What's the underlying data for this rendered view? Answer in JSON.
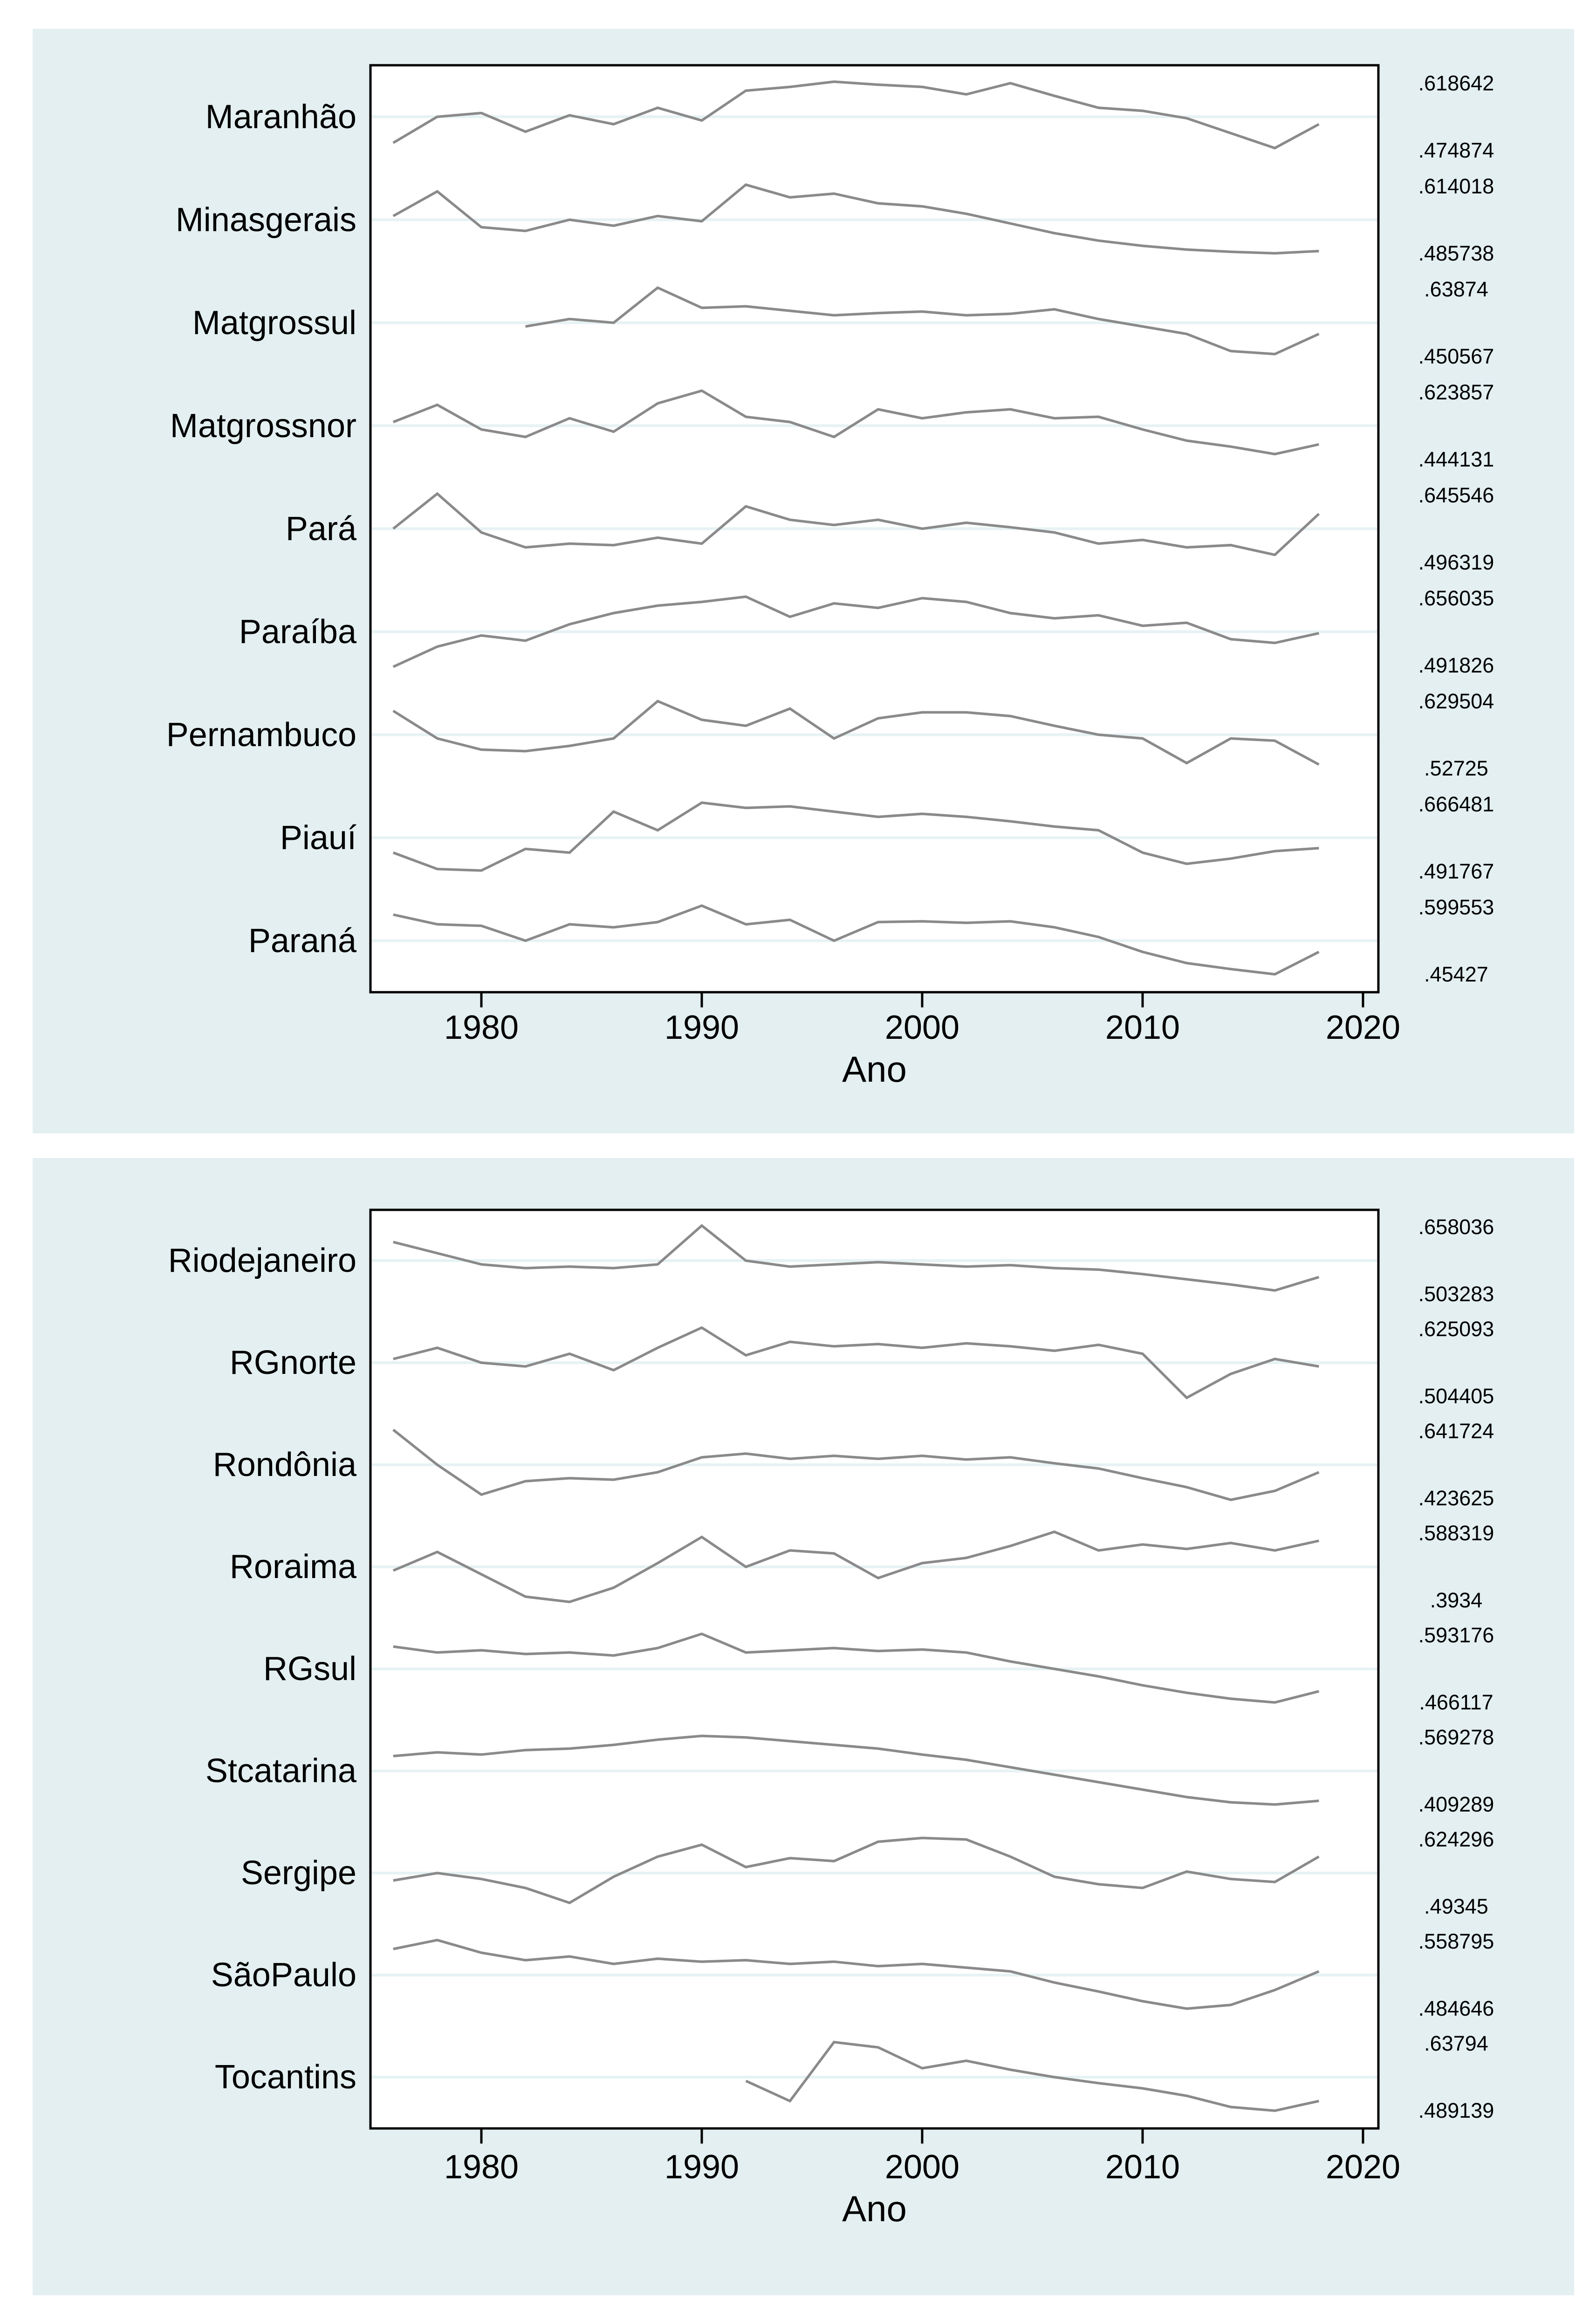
{
  "chart_data": {
    "type": "line",
    "xlabel": "Ano",
    "x_ticks": [
      1980,
      1990,
      2000,
      2010,
      2020
    ],
    "x_range": [
      1976,
      2018
    ],
    "grid": "horizontal-per-series",
    "legend_position": "none",
    "style": {
      "figure_background": "#e3eff1",
      "plot_background": "#ffffff",
      "grid_color": "#e6f2f3",
      "line_color": "#8a8a8a",
      "axis_color": "#000000"
    },
    "panels": [
      {
        "series": [
          {
            "name": "Maranhão",
            "max": ".618642",
            "min": ".474874",
            "start_year": 1976,
            "step": 2,
            "values": [
              0.15,
              0.5,
              0.55,
              0.3,
              0.52,
              0.4,
              0.62,
              0.45,
              0.85,
              0.9,
              0.97,
              0.93,
              0.9,
              0.8,
              0.95,
              0.78,
              0.62,
              0.58,
              0.48,
              0.28,
              0.08,
              0.4
            ]
          },
          {
            "name": "Minasgerais",
            "max": ".614018",
            "min": ".485738",
            "start_year": 1976,
            "step": 2,
            "values": [
              0.55,
              0.88,
              0.4,
              0.35,
              0.5,
              0.42,
              0.55,
              0.48,
              0.97,
              0.8,
              0.85,
              0.72,
              0.68,
              0.58,
              0.45,
              0.32,
              0.22,
              0.15,
              0.1,
              0.07,
              0.05,
              0.08
            ]
          },
          {
            "name": "Matgrossul",
            "max": ".63874",
            "min": ".450567",
            "start_year": 1982,
            "step": 2,
            "values": [
              0.45,
              0.55,
              0.5,
              0.97,
              0.7,
              0.72,
              0.66,
              0.6,
              0.63,
              0.65,
              0.6,
              0.62,
              0.68,
              0.55,
              0.45,
              0.35,
              0.12,
              0.08,
              0.35
            ]
          },
          {
            "name": "Matgrossnor",
            "max": ".623857",
            "min": ".444131",
            "start_year": 1976,
            "step": 2,
            "values": [
              0.55,
              0.78,
              0.45,
              0.35,
              0.6,
              0.42,
              0.8,
              0.97,
              0.62,
              0.55,
              0.35,
              0.72,
              0.6,
              0.68,
              0.72,
              0.6,
              0.62,
              0.45,
              0.3,
              0.22,
              0.12,
              0.25
            ]
          },
          {
            "name": "Pará",
            "max": ".645546",
            "min": ".496319",
            "start_year": 1976,
            "step": 2,
            "values": [
              0.5,
              0.97,
              0.45,
              0.25,
              0.3,
              0.28,
              0.38,
              0.3,
              0.8,
              0.62,
              0.55,
              0.62,
              0.5,
              0.58,
              0.52,
              0.45,
              0.3,
              0.35,
              0.25,
              0.28,
              0.15,
              0.7
            ]
          },
          {
            "name": "Paraíba",
            "max": ".656035",
            "min": ".491826",
            "start_year": 1976,
            "step": 2,
            "values": [
              0.03,
              0.3,
              0.45,
              0.38,
              0.6,
              0.75,
              0.85,
              0.9,
              0.97,
              0.7,
              0.88,
              0.82,
              0.95,
              0.9,
              0.75,
              0.68,
              0.72,
              0.58,
              0.62,
              0.4,
              0.35,
              0.48
            ]
          },
          {
            "name": "Pernambuco",
            "max": ".629504",
            "min": ".52725",
            "start_year": 1976,
            "step": 2,
            "values": [
              0.82,
              0.45,
              0.3,
              0.28,
              0.35,
              0.45,
              0.95,
              0.7,
              0.62,
              0.85,
              0.45,
              0.72,
              0.8,
              0.8,
              0.75,
              0.62,
              0.5,
              0.45,
              0.12,
              0.45,
              0.42,
              0.1
            ]
          },
          {
            "name": "Piauí",
            "max": ".666481",
            "min": ".491767",
            "start_year": 1976,
            "step": 2,
            "values": [
              0.3,
              0.08,
              0.06,
              0.35,
              0.3,
              0.85,
              0.6,
              0.97,
              0.9,
              0.92,
              0.85,
              0.78,
              0.82,
              0.78,
              0.72,
              0.65,
              0.6,
              0.3,
              0.15,
              0.22,
              0.32,
              0.36
            ]
          },
          {
            "name": "Paraná",
            "max": ".599553",
            "min": ".45427",
            "start_year": 1976,
            "step": 2,
            "values": [
              0.85,
              0.72,
              0.7,
              0.5,
              0.72,
              0.68,
              0.75,
              0.97,
              0.72,
              0.78,
              0.5,
              0.75,
              0.76,
              0.74,
              0.76,
              0.68,
              0.55,
              0.35,
              0.2,
              0.12,
              0.05,
              0.35
            ]
          }
        ]
      },
      {
        "series": [
          {
            "name": "Riodejaneiro",
            "max": ".658036",
            "min": ".503283",
            "start_year": 1976,
            "step": 2,
            "values": [
              0.75,
              0.6,
              0.45,
              0.4,
              0.42,
              0.4,
              0.45,
              0.97,
              0.5,
              0.42,
              0.45,
              0.48,
              0.45,
              0.42,
              0.44,
              0.4,
              0.38,
              0.32,
              0.25,
              0.18,
              0.1,
              0.28
            ]
          },
          {
            "name": "RGnorte",
            "max": ".625093",
            "min": ".504405",
            "start_year": 1976,
            "step": 2,
            "values": [
              0.55,
              0.7,
              0.5,
              0.45,
              0.62,
              0.4,
              0.7,
              0.97,
              0.6,
              0.78,
              0.72,
              0.75,
              0.7,
              0.76,
              0.72,
              0.66,
              0.74,
              0.62,
              0.03,
              0.35,
              0.55,
              0.45
            ]
          },
          {
            "name": "Rondônia",
            "max": ".641724",
            "min": ".423625",
            "start_year": 1976,
            "step": 2,
            "values": [
              0.97,
              0.5,
              0.1,
              0.28,
              0.32,
              0.3,
              0.4,
              0.6,
              0.65,
              0.58,
              0.62,
              0.58,
              0.62,
              0.57,
              0.6,
              0.52,
              0.45,
              0.32,
              0.2,
              0.03,
              0.15,
              0.4
            ]
          },
          {
            "name": "Roraima",
            "max": ".588319",
            "min": ".3934",
            "start_year": 1976,
            "step": 2,
            "values": [
              0.45,
              0.7,
              0.4,
              0.1,
              0.03,
              0.22,
              0.55,
              0.9,
              0.5,
              0.72,
              0.68,
              0.35,
              0.55,
              0.62,
              0.78,
              0.97,
              0.72,
              0.8,
              0.74,
              0.82,
              0.72,
              0.85
            ]
          },
          {
            "name": "RGsul",
            "max": ".593176",
            "min": ".466117",
            "start_year": 1976,
            "step": 2,
            "values": [
              0.8,
              0.72,
              0.75,
              0.7,
              0.72,
              0.68,
              0.78,
              0.97,
              0.72,
              0.75,
              0.78,
              0.74,
              0.76,
              0.72,
              0.6,
              0.5,
              0.4,
              0.28,
              0.18,
              0.1,
              0.05,
              0.2
            ]
          },
          {
            "name": "Stcatarina",
            "max": ".569278",
            "min": ".409289",
            "start_year": 1976,
            "step": 2,
            "values": [
              0.7,
              0.75,
              0.72,
              0.78,
              0.8,
              0.85,
              0.92,
              0.97,
              0.95,
              0.9,
              0.85,
              0.8,
              0.72,
              0.65,
              0.55,
              0.45,
              0.35,
              0.25,
              0.15,
              0.08,
              0.05,
              0.1
            ]
          },
          {
            "name": "Sergipe",
            "max": ".624296",
            "min": ".49345",
            "start_year": 1976,
            "step": 2,
            "values": [
              0.4,
              0.5,
              0.42,
              0.3,
              0.1,
              0.45,
              0.72,
              0.88,
              0.58,
              0.7,
              0.66,
              0.92,
              0.97,
              0.95,
              0.72,
              0.45,
              0.35,
              0.3,
              0.52,
              0.42,
              0.38,
              0.72
            ]
          },
          {
            "name": "SãoPaulo",
            "max": ".558795",
            "min": ".484646",
            "start_year": 1976,
            "step": 2,
            "values": [
              0.85,
              0.97,
              0.8,
              0.7,
              0.75,
              0.65,
              0.72,
              0.68,
              0.7,
              0.65,
              0.68,
              0.62,
              0.65,
              0.6,
              0.55,
              0.4,
              0.28,
              0.15,
              0.05,
              0.1,
              0.3,
              0.55
            ]
          },
          {
            "name": "Tocantins",
            "max": ".63794",
            "min": ".489139",
            "start_year": 1992,
            "step": 2,
            "values": [
              0.45,
              0.18,
              0.97,
              0.9,
              0.62,
              0.72,
              0.6,
              0.5,
              0.42,
              0.35,
              0.25,
              0.1,
              0.05,
              0.18
            ]
          }
        ]
      }
    ]
  }
}
